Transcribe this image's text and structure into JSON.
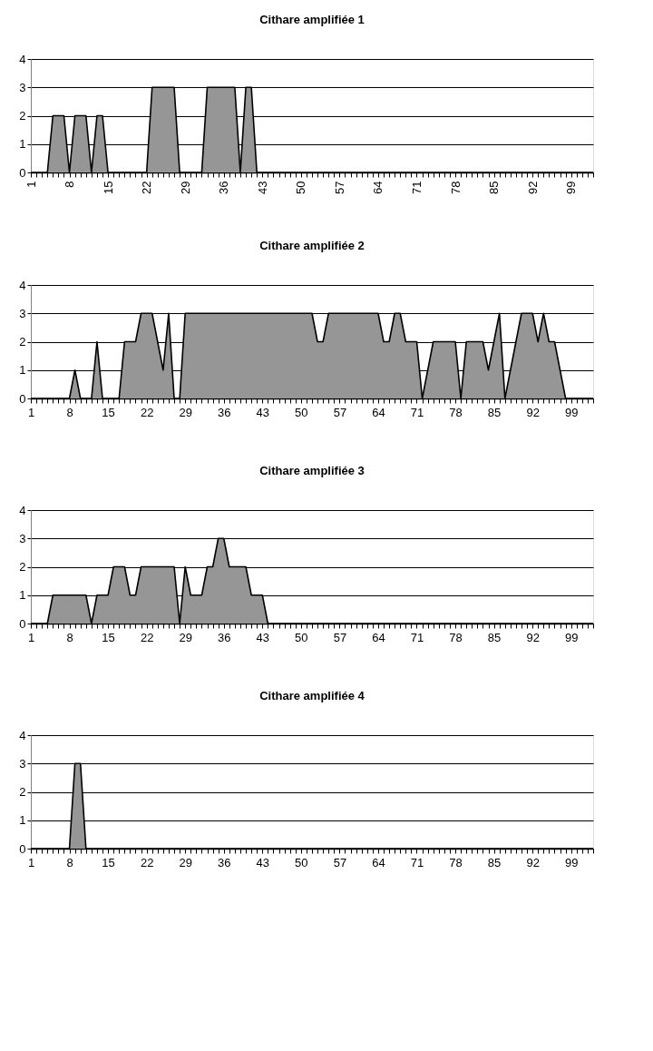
{
  "chart_data": [
    {
      "type": "area",
      "title": "Cithare amplifiée 1",
      "color": "#969696",
      "ylim": [
        0,
        4
      ],
      "yticks": [
        0,
        1,
        2,
        3,
        4
      ],
      "grid": "y",
      "categories": [
        "1",
        null,
        null,
        null,
        null,
        null,
        null,
        "8",
        null,
        null,
        null,
        null,
        null,
        null,
        "15",
        null,
        null,
        null,
        null,
        null,
        null,
        "22",
        null,
        null,
        null,
        null,
        null,
        null,
        "29",
        null,
        null,
        null,
        null,
        null,
        null,
        "36",
        null,
        null,
        null,
        null,
        null,
        null,
        "43",
        null,
        null,
        null,
        null,
        null,
        null,
        "50",
        null,
        null,
        null,
        null,
        null,
        null,
        "57",
        null,
        null,
        null,
        null,
        null,
        null,
        "64",
        null,
        null,
        null,
        null,
        null,
        null,
        "71",
        null,
        null,
        null,
        null,
        null,
        null,
        "78",
        null,
        null,
        null,
        null,
        null,
        null,
        "85",
        null,
        null,
        null,
        null,
        null,
        null,
        "92",
        null,
        null,
        null,
        null,
        null,
        null,
        "99",
        null,
        null,
        null,
        null
      ],
      "values": [
        0,
        0,
        0,
        0,
        2,
        2,
        2,
        0,
        2,
        2,
        2,
        0,
        2,
        2,
        0,
        0,
        0,
        0,
        0,
        0,
        0,
        0,
        3,
        3,
        3,
        3,
        3,
        0,
        0,
        0,
        0,
        0,
        3,
        3,
        3,
        3,
        3,
        3,
        0,
        3,
        3,
        0,
        0,
        0,
        0,
        0,
        0,
        0,
        0,
        0,
        0,
        0,
        0,
        0,
        0,
        0,
        0,
        0,
        0,
        0,
        0,
        0,
        0,
        0,
        0,
        0,
        0,
        0,
        0,
        0,
        0,
        0,
        0,
        0,
        0,
        0,
        0,
        0,
        0,
        0,
        0,
        0,
        0,
        0,
        0,
        0,
        0,
        0,
        0,
        0,
        0,
        0,
        0,
        0,
        0,
        0,
        0,
        0,
        0,
        0,
        0,
        0,
        0
      ]
    },
    {
      "type": "area",
      "title": "Cithare amplifiée 2",
      "color": "#969696",
      "ylim": [
        0,
        4
      ],
      "yticks": [
        0,
        1,
        2,
        3,
        4
      ],
      "grid": "y",
      "categories": [
        "1",
        null,
        null,
        null,
        null,
        null,
        null,
        "8",
        null,
        null,
        null,
        null,
        null,
        null,
        "15",
        null,
        null,
        null,
        null,
        null,
        null,
        "22",
        null,
        null,
        null,
        null,
        null,
        null,
        "29",
        null,
        null,
        null,
        null,
        null,
        null,
        "36",
        null,
        null,
        null,
        null,
        null,
        null,
        "43",
        null,
        null,
        null,
        null,
        null,
        null,
        "50",
        null,
        null,
        null,
        null,
        null,
        null,
        "57",
        null,
        null,
        null,
        null,
        null,
        null,
        "64",
        null,
        null,
        null,
        null,
        null,
        null,
        "71",
        null,
        null,
        null,
        null,
        null,
        null,
        "78",
        null,
        null,
        null,
        null,
        null,
        null,
        "85",
        null,
        null,
        null,
        null,
        null,
        null,
        "92",
        null,
        null,
        null,
        null,
        null,
        null,
        "99",
        null,
        null,
        null,
        null
      ],
      "values": [
        0,
        0,
        0,
        0,
        0,
        0,
        0,
        0,
        1,
        0,
        0,
        0,
        2,
        0,
        0,
        0,
        0,
        2,
        2,
        2,
        3,
        3,
        3,
        2,
        1,
        3,
        0,
        0,
        3,
        3,
        3,
        3,
        3,
        3,
        3,
        3,
        3,
        3,
        3,
        3,
        3,
        3,
        3,
        3,
        3,
        3,
        3,
        3,
        3,
        3,
        3,
        3,
        2,
        2,
        3,
        3,
        3,
        3,
        3,
        3,
        3,
        3,
        3,
        3,
        2,
        2,
        3,
        3,
        2,
        2,
        2,
        0,
        1,
        2,
        2,
        2,
        2,
        2,
        0,
        2,
        2,
        2,
        2,
        1,
        2,
        3,
        0,
        1,
        2,
        3,
        3,
        3,
        2,
        3,
        2,
        2,
        1,
        0,
        0,
        0,
        0,
        0,
        0
      ]
    },
    {
      "type": "area",
      "title": "Cithare amplifiée 3",
      "color": "#969696",
      "ylim": [
        0,
        4
      ],
      "yticks": [
        0,
        1,
        2,
        3,
        4
      ],
      "grid": "y",
      "categories": [
        "1",
        null,
        null,
        null,
        null,
        null,
        null,
        "8",
        null,
        null,
        null,
        null,
        null,
        null,
        "15",
        null,
        null,
        null,
        null,
        null,
        null,
        "22",
        null,
        null,
        null,
        null,
        null,
        null,
        "29",
        null,
        null,
        null,
        null,
        null,
        null,
        "36",
        null,
        null,
        null,
        null,
        null,
        null,
        "43",
        null,
        null,
        null,
        null,
        null,
        null,
        "50",
        null,
        null,
        null,
        null,
        null,
        null,
        "57",
        null,
        null,
        null,
        null,
        null,
        null,
        "64",
        null,
        null,
        null,
        null,
        null,
        null,
        "71",
        null,
        null,
        null,
        null,
        null,
        null,
        "78",
        null,
        null,
        null,
        null,
        null,
        null,
        "85",
        null,
        null,
        null,
        null,
        null,
        null,
        "92",
        null,
        null,
        null,
        null,
        null,
        null,
        "99",
        null,
        null,
        null,
        null
      ],
      "values": [
        0,
        0,
        0,
        0,
        1,
        1,
        1,
        1,
        1,
        1,
        1,
        0,
        1,
        1,
        1,
        2,
        2,
        2,
        1,
        1,
        2,
        2,
        2,
        2,
        2,
        2,
        2,
        0,
        2,
        1,
        1,
        1,
        2,
        2,
        3,
        3,
        2,
        2,
        2,
        2,
        1,
        1,
        1,
        0,
        0,
        0,
        0,
        0,
        0,
        0,
        0,
        0,
        0,
        0,
        0,
        0,
        0,
        0,
        0,
        0,
        0,
        0,
        0,
        0,
        0,
        0,
        0,
        0,
        0,
        0,
        0,
        0,
        0,
        0,
        0,
        0,
        0,
        0,
        0,
        0,
        0,
        0,
        0,
        0,
        0,
        0,
        0,
        0,
        0,
        0,
        0,
        0,
        0,
        0,
        0,
        0,
        0,
        0,
        0,
        0,
        0,
        0,
        0
      ]
    },
    {
      "type": "area",
      "title": "Cithare amplifiée 4",
      "color": "#969696",
      "ylim": [
        0,
        4
      ],
      "yticks": [
        0,
        1,
        2,
        3,
        4
      ],
      "grid": "y",
      "categories": [
        "1",
        null,
        null,
        null,
        null,
        null,
        null,
        "8",
        null,
        null,
        null,
        null,
        null,
        null,
        "15",
        null,
        null,
        null,
        null,
        null,
        null,
        "22",
        null,
        null,
        null,
        null,
        null,
        null,
        "29",
        null,
        null,
        null,
        null,
        null,
        null,
        "36",
        null,
        null,
        null,
        null,
        null,
        null,
        "43",
        null,
        null,
        null,
        null,
        null,
        null,
        "50",
        null,
        null,
        null,
        null,
        null,
        null,
        "57",
        null,
        null,
        null,
        null,
        null,
        null,
        "64",
        null,
        null,
        null,
        null,
        null,
        null,
        "71",
        null,
        null,
        null,
        null,
        null,
        null,
        "78",
        null,
        null,
        null,
        null,
        null,
        null,
        "85",
        null,
        null,
        null,
        null,
        null,
        null,
        "92",
        null,
        null,
        null,
        null,
        null,
        null,
        "99",
        null,
        null,
        null,
        null
      ],
      "values": [
        0,
        0,
        0,
        0,
        0,
        0,
        0,
        0,
        3,
        3,
        0,
        0,
        0,
        0,
        0,
        0,
        0,
        0,
        0,
        0,
        0,
        0,
        0,
        0,
        0,
        0,
        0,
        0,
        0,
        0,
        0,
        0,
        0,
        0,
        0,
        0,
        0,
        0,
        0,
        0,
        0,
        0,
        0,
        0,
        0,
        0,
        0,
        0,
        0,
        0,
        0,
        0,
        0,
        0,
        0,
        0,
        0,
        0,
        0,
        0,
        0,
        0,
        0,
        0,
        0,
        0,
        0,
        0,
        0,
        0,
        0,
        0,
        0,
        0,
        0,
        0,
        0,
        0,
        0,
        0,
        0,
        0,
        0,
        0,
        0,
        0,
        0,
        0,
        0,
        0,
        0,
        0,
        0,
        0,
        0,
        0,
        0,
        0,
        0,
        0,
        0,
        0,
        0
      ]
    }
  ]
}
